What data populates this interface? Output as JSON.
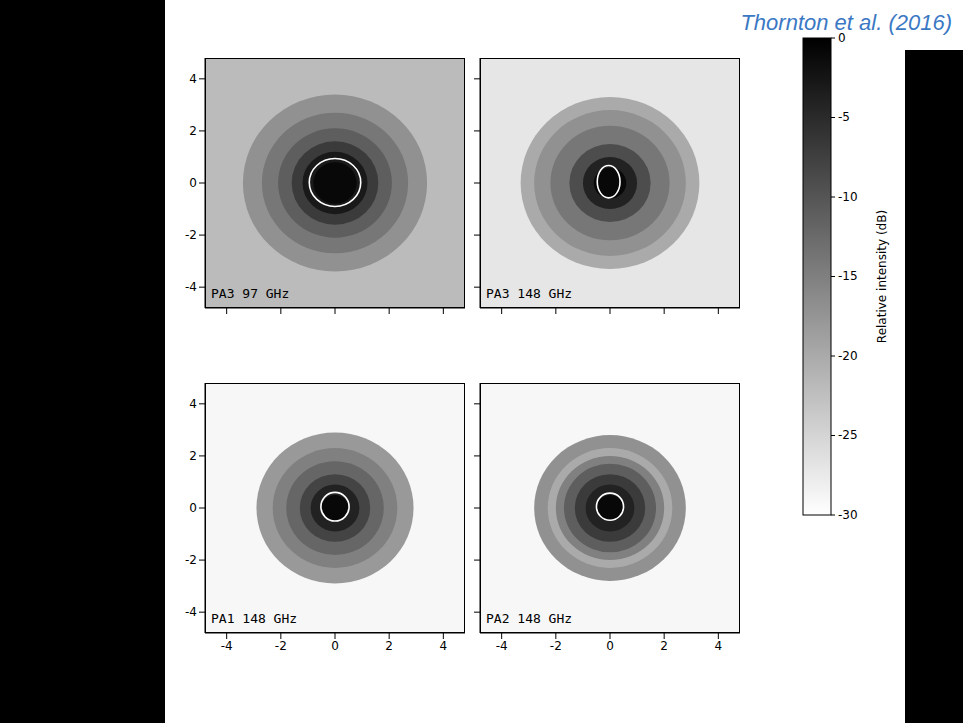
{
  "title": "Thornton et al. (2016)",
  "colorbar": {
    "label": "Relative intensity (dB)",
    "range": [
      -30,
      0
    ],
    "ticks": [
      0,
      -5,
      -10,
      -15,
      -20,
      -25,
      -30
    ]
  },
  "chart_data": [
    {
      "type": "heatmap",
      "panel_label": "PA3 97 GHz",
      "xlim": [
        -4.8,
        4.8
      ],
      "ylim": [
        -4.8,
        4.8
      ],
      "xticks": [
        -4,
        -2,
        0,
        2,
        4
      ],
      "yticks": [
        -4,
        -2,
        0,
        2,
        4
      ],
      "tick_labels": "y",
      "profile": {
        "center": [
          0,
          0
        ],
        "radius": [
          7,
          3.4,
          2.7,
          2.1,
          1.6,
          1.2,
          0.8
        ],
        "intensity_db": [
          -22,
          -17,
          -14,
          -11,
          -7,
          -3,
          -1
        ]
      },
      "beam_contour": {
        "center": [
          0,
          0.02
        ],
        "radius": [
          0.95,
          0.92
        ]
      }
    },
    {
      "type": "heatmap",
      "panel_label": "PA3 148 GHz",
      "xlim": [
        -4.8,
        4.8
      ],
      "ylim": [
        -4.8,
        4.8
      ],
      "xticks": [
        -4,
        -2,
        0,
        2,
        4
      ],
      "yticks": [
        -4,
        -2,
        0,
        2,
        4
      ],
      "tick_labels": false,
      "profile": {
        "center": [
          0,
          0
        ],
        "radius": [
          7,
          3.3,
          2.8,
          2.2,
          1.5,
          1.0,
          0.6
        ],
        "intensity_db": [
          -27,
          -20,
          -17,
          -14,
          -9,
          -4,
          -1
        ]
      },
      "beam_contour": {
        "center": [
          -0.05,
          0.05
        ],
        "radius": [
          0.42,
          0.62
        ]
      }
    },
    {
      "type": "heatmap",
      "panel_label": "PA1 148 GHz",
      "xlim": [
        -4.8,
        4.8
      ],
      "ylim": [
        -4.8,
        4.8
      ],
      "xticks": [
        -4,
        -2,
        0,
        2,
        4
      ],
      "yticks": [
        -4,
        -2,
        0,
        2,
        4
      ],
      "profile": {
        "center": [
          0,
          0
        ],
        "radius": [
          7,
          2.9,
          2.3,
          1.8,
          1.3,
          0.9,
          0.5
        ],
        "intensity_db": [
          -29,
          -18,
          -15,
          -12,
          -8,
          -4,
          -1
        ]
      },
      "beam_contour": {
        "center": [
          0,
          0.05
        ],
        "radius": [
          0.52,
          0.55
        ]
      }
    },
    {
      "type": "heatmap",
      "panel_label": "PA2 148 GHz",
      "xlim": [
        -4.8,
        4.8
      ],
      "ylim": [
        -4.8,
        4.8
      ],
      "xticks": [
        -4,
        -2,
        0,
        2,
        4
      ],
      "yticks": [
        -4,
        -2,
        0,
        2,
        4
      ],
      "tick_labels": "x",
      "profile": {
        "center": [
          0,
          0
        ],
        "radius": [
          7,
          2.8,
          2.3,
          2.0,
          1.7,
          1.3,
          0.9,
          0.5
        ],
        "intensity_db": [
          -29,
          -17,
          -20,
          -15,
          -11,
          -7,
          -4,
          -1
        ]
      },
      "beam_contour": {
        "center": [
          0,
          0.05
        ],
        "radius": [
          0.5,
          0.52
        ]
      }
    }
  ]
}
